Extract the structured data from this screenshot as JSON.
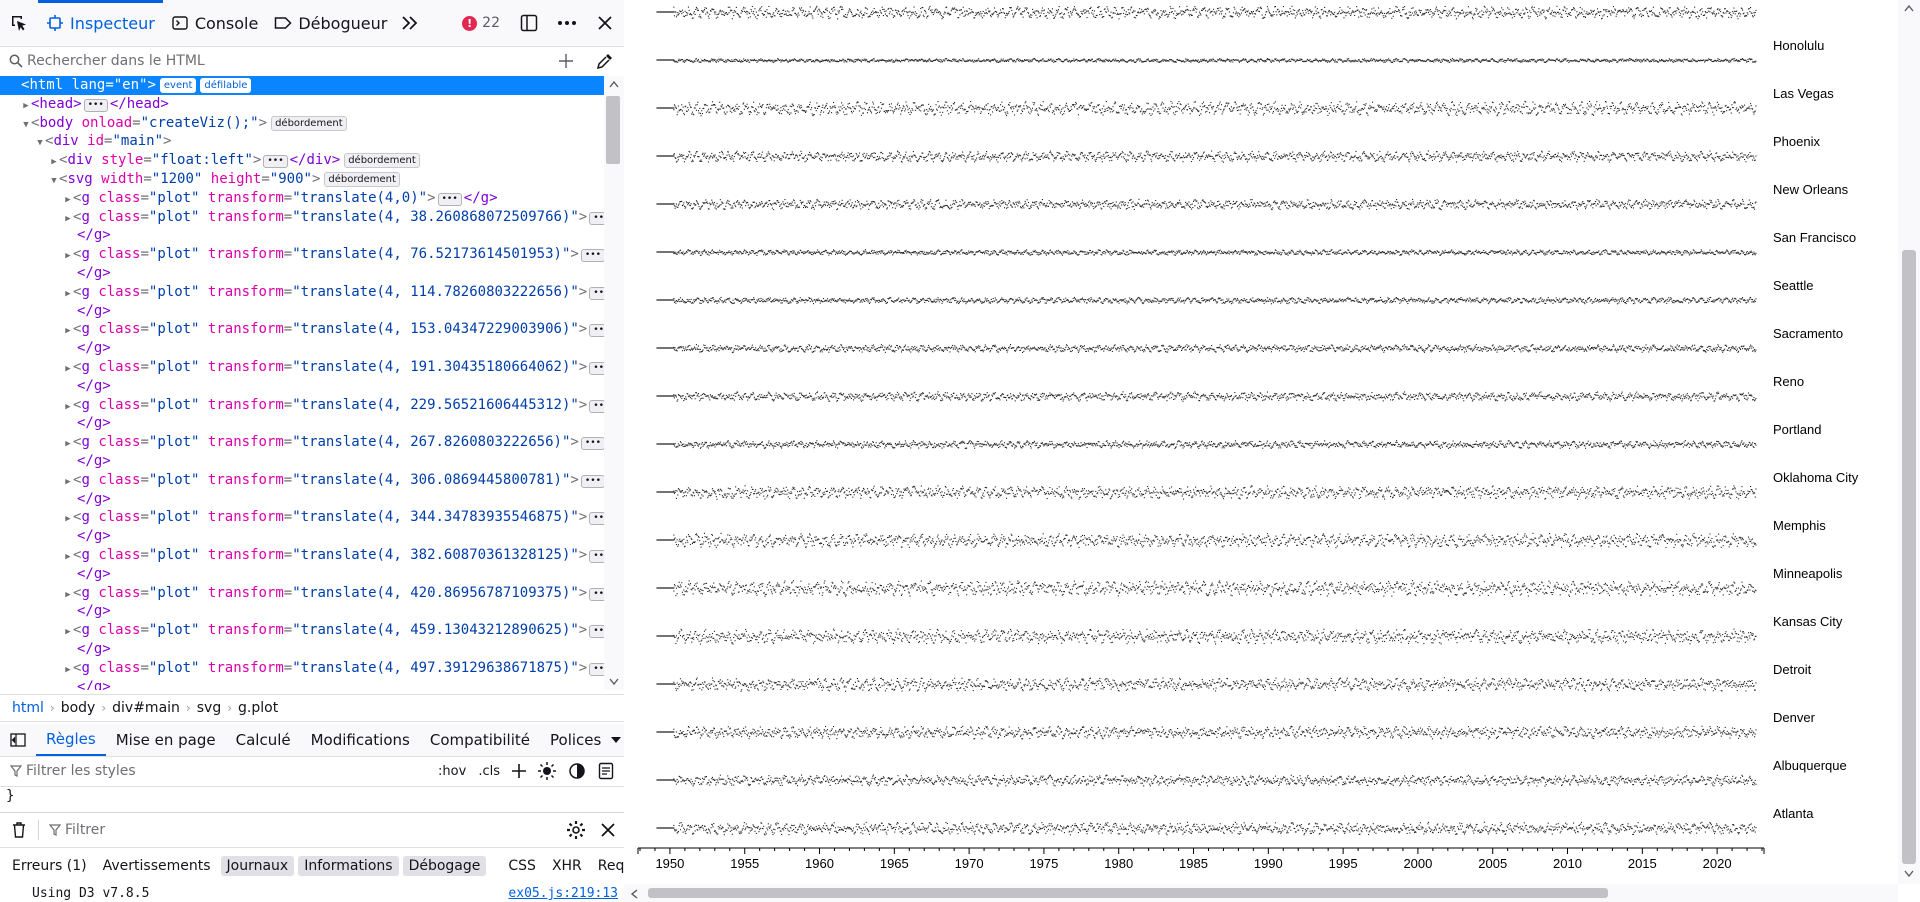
{
  "toolbar": {
    "tabs": [
      {
        "label": "Inspecteur",
        "icon": "inspector-icon",
        "active": true
      },
      {
        "label": "Console",
        "icon": "console-icon",
        "active": false
      },
      {
        "label": "Débogueur",
        "icon": "debugger-icon",
        "active": false
      }
    ],
    "error_count": "22"
  },
  "search": {
    "placeholder": "Rechercher dans le HTML"
  },
  "tree": {
    "html_open": {
      "tag": "html",
      "attr": "lang",
      "value": "\"en\"",
      "badges": [
        "event",
        "défilable"
      ]
    },
    "head": {
      "text": "<head>",
      "close": "</head>"
    },
    "body": {
      "attr": "onload",
      "value": "\"createViz();\"",
      "badge": "débordement"
    },
    "div_main": {
      "attr": "id",
      "value": "\"main\""
    },
    "div_float": {
      "attr": "style",
      "value": "\"float:left\"",
      "close": "</div>",
      "badge": "débordement"
    },
    "svg": {
      "attr_w": "width",
      "val_w": "\"1200\"",
      "attr_h": "height",
      "val_h": "\"900\"",
      "badge": "débordement"
    },
    "g_close": "</g>",
    "plots": [
      "\"translate(4,0)\"",
      "\"translate(4, 38.260868072509766)\"",
      "\"translate(4, 76.52173614501953)\"",
      "\"translate(4, 114.78260803222656)\"",
      "\"translate(4, 153.04347229003906)\"",
      "\"translate(4, 191.30435180664062)\"",
      "\"translate(4, 229.56521606445312)\"",
      "\"translate(4, 267.8260803222656)\"",
      "\"translate(4, 306.0869445800781)\"",
      "\"translate(4, 344.34783935546875)\"",
      "\"translate(4, 382.60870361328125)\"",
      "\"translate(4, 420.86956787109375)\"",
      "\"translate(4, 459.13043212890625)\"",
      "\"translate(4, 497.39129638671875)\""
    ]
  },
  "breadcrumb": [
    "html",
    "body",
    "div#main",
    "svg",
    "g.plot"
  ],
  "rules_tabs": [
    "Règles",
    "Mise en page",
    "Calculé",
    "Modifications",
    "Compatibilité",
    "Polices"
  ],
  "styles_filter": {
    "placeholder": "Filtrer les styles",
    "hov": ":hov",
    "cls": ".cls"
  },
  "rule_brace": "}",
  "console": {
    "filter_placeholder": "Filtrer",
    "categories": [
      {
        "label": "Erreurs (1)",
        "on": false
      },
      {
        "label": "Avertissements",
        "on": false
      },
      {
        "label": "Journaux",
        "on": true
      },
      {
        "label": "Informations",
        "on": true
      },
      {
        "label": "Débogage",
        "on": true
      },
      {
        "label": "CSS",
        "on": false
      },
      {
        "label": "XHR",
        "on": false
      },
      {
        "label": "Requêtes",
        "on": false
      }
    ],
    "message": "Using D3 v7.8.5",
    "source": "ex05.js:219:13"
  },
  "colors": {
    "accent": "#0060df",
    "selection": "#0a84ff",
    "error": "#e22850"
  },
  "chart_data": {
    "type": "scatter",
    "title": "",
    "xlabel": "",
    "ylabel": "",
    "x_ticks": [
      1950,
      1955,
      1960,
      1965,
      1970,
      1975,
      1980,
      1985,
      1990,
      1995,
      2000,
      2005,
      2010,
      2015,
      2020
    ],
    "xlim": [
      1948,
      2023
    ],
    "series_names": [
      "Honolulu",
      "Las Vegas",
      "Phoenix",
      "New Orleans",
      "San Francisco",
      "Seattle",
      "Sacramento",
      "Reno",
      "Portland",
      "Oklahoma City",
      "Memphis",
      "Minneapolis",
      "Kansas City",
      "Detroit",
      "Denver",
      "Albuquerque",
      "Atlanta"
    ],
    "series_spread": [
      0.25,
      0.9,
      0.7,
      0.65,
      0.35,
      0.4,
      0.5,
      0.6,
      0.5,
      0.85,
      0.9,
      1.0,
      0.95,
      0.85,
      0.8,
      0.7,
      0.8
    ],
    "grid": false,
    "legend": "labels right of each row"
  }
}
